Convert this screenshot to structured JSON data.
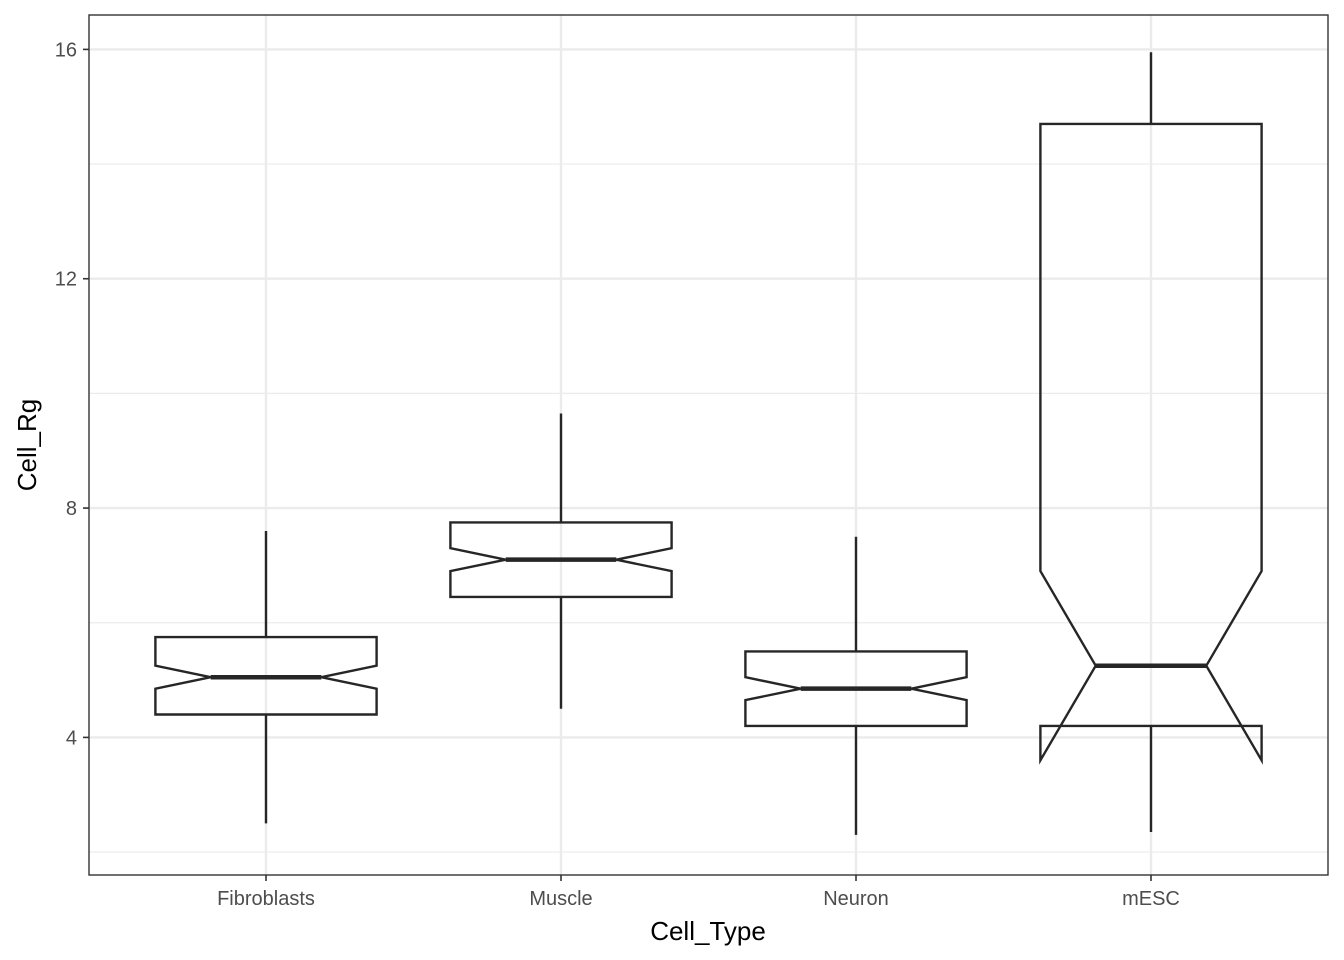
{
  "chart_data": {
    "type": "boxplot",
    "notched": true,
    "xlabel": "Cell_Type",
    "ylabel": "Cell_Rg",
    "title": "",
    "categories": [
      "Fibroblasts",
      "Muscle",
      "Neuron",
      "mESC"
    ],
    "ylim": [
      1.6,
      16.6
    ],
    "y_ticks": [
      4,
      8,
      12,
      16
    ],
    "y_minor_ticks": [
      2,
      6,
      10,
      14
    ],
    "grid": true,
    "boxes": [
      {
        "category": "Fibroblasts",
        "whisker_low": 2.5,
        "q1": 4.4,
        "median": 5.05,
        "q3": 5.75,
        "whisker_high": 7.6,
        "notch_low": 4.85,
        "notch_high": 5.25
      },
      {
        "category": "Muscle",
        "whisker_low": 4.5,
        "q1": 6.45,
        "median": 7.1,
        "q3": 7.75,
        "whisker_high": 9.65,
        "notch_low": 6.9,
        "notch_high": 7.3
      },
      {
        "category": "Neuron",
        "whisker_low": 2.3,
        "q1": 4.2,
        "median": 4.85,
        "q3": 5.5,
        "whisker_high": 7.5,
        "notch_low": 4.65,
        "notch_high": 5.05
      },
      {
        "category": "mESC",
        "whisker_low": 2.35,
        "q1": 4.2,
        "median": 5.25,
        "q3": 14.7,
        "whisker_high": 15.95,
        "notch_low": 3.6,
        "notch_high": 6.9
      }
    ],
    "colors": {
      "outline": "#262626",
      "grid": "#ebebeb",
      "panel_border": "#333333",
      "background": "#ffffff"
    }
  }
}
